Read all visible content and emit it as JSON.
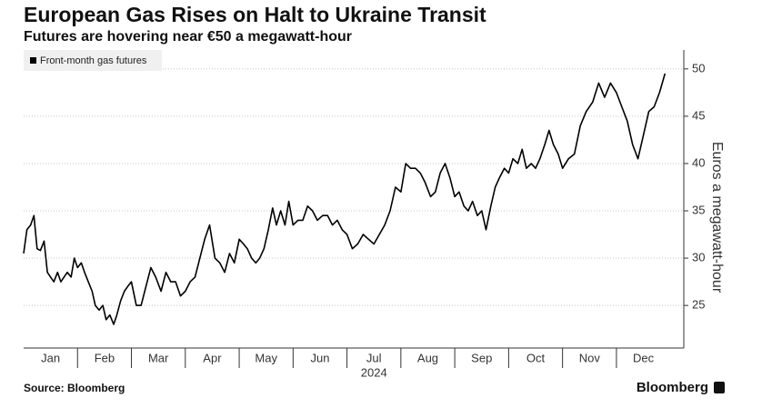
{
  "chart_data": {
    "type": "line",
    "title": "European Gas Rises on Halt to Ukraine Transit",
    "subtitle": "Futures are hovering near €50 a megawatt-hour",
    "ylabel": "Euros a megawatt-hour",
    "xlabel": "2024",
    "source": "Source: Bloomberg",
    "brand": "Bloomberg",
    "grid": true,
    "legend": "top-left",
    "y_axis_side": "right",
    "xlim": [
      0,
      12.25
    ],
    "ylim": [
      20.5,
      52
    ],
    "yticks": [
      25,
      30,
      35,
      40,
      45,
      50
    ],
    "xticks": [
      {
        "value": 0.5,
        "label": "Jan"
      },
      {
        "value": 1.5,
        "label": "Feb"
      },
      {
        "value": 2.5,
        "label": "Mar"
      },
      {
        "value": 3.5,
        "label": "Apr"
      },
      {
        "value": 4.5,
        "label": "May"
      },
      {
        "value": 5.5,
        "label": "Jun"
      },
      {
        "value": 6.5,
        "label": "Jul"
      },
      {
        "value": 7.5,
        "label": "Aug"
      },
      {
        "value": 8.5,
        "label": "Sep"
      },
      {
        "value": 9.5,
        "label": "Oct"
      },
      {
        "value": 10.5,
        "label": "Nov"
      },
      {
        "value": 11.5,
        "label": "Dec"
      }
    ],
    "x": [
      0,
      0.06,
      0.13,
      0.19,
      0.25,
      0.31,
      0.38,
      0.44,
      0.5,
      0.56,
      0.63,
      0.69,
      0.75,
      0.81,
      0.88,
      0.94,
      1,
      1.07,
      1.13,
      1.2,
      1.27,
      1.33,
      1.4,
      1.47,
      1.53,
      1.6,
      1.67,
      1.73,
      1.8,
      1.87,
      1.93,
      2,
      2.09,
      2.18,
      2.27,
      2.36,
      2.45,
      2.55,
      2.64,
      2.73,
      2.82,
      2.91,
      3,
      3.09,
      3.18,
      3.27,
      3.36,
      3.45,
      3.55,
      3.64,
      3.73,
      3.82,
      3.91,
      4,
      4.08,
      4.15,
      4.23,
      4.31,
      4.38,
      4.46,
      4.54,
      4.62,
      4.69,
      4.77,
      4.85,
      4.92,
      5,
      5.09,
      5.18,
      5.27,
      5.36,
      5.45,
      5.55,
      5.64,
      5.73,
      5.82,
      5.91,
      6,
      6.1,
      6.2,
      6.3,
      6.4,
      6.5,
      6.6,
      6.7,
      6.8,
      6.9,
      7,
      7.09,
      7.18,
      7.27,
      7.36,
      7.45,
      7.55,
      7.64,
      7.73,
      7.82,
      7.91,
      8,
      8.08,
      8.17,
      8.25,
      8.33,
      8.42,
      8.5,
      8.58,
      8.67,
      8.75,
      8.83,
      8.92,
      9,
      9.08,
      9.17,
      9.25,
      9.33,
      9.42,
      9.5,
      9.58,
      9.67,
      9.75,
      9.83,
      9.92,
      10,
      10.11,
      10.22,
      10.33,
      10.44,
      10.56,
      10.67,
      10.78,
      10.89,
      11,
      11.1,
      11.2,
      11.3,
      11.4,
      11.5,
      11.6,
      11.7,
      11.8,
      11.9
    ],
    "series": [
      {
        "name": "Front-month gas futures",
        "color": "#000000",
        "values": [
          30.5,
          33,
          33.5,
          34.5,
          31,
          30.8,
          31.8,
          28.5,
          28,
          27.5,
          28.5,
          27.5,
          28,
          28.5,
          28,
          30,
          29,
          29.5,
          28.5,
          27.5,
          26.5,
          25,
          24.5,
          25,
          23.5,
          24,
          23,
          24,
          25.5,
          26.5,
          27,
          27.5,
          25,
          25,
          27,
          29,
          28,
          26.5,
          28.5,
          27.5,
          27.5,
          26,
          26.5,
          27.5,
          28,
          30,
          32,
          33.5,
          30,
          29.5,
          28.5,
          30.5,
          29.5,
          32,
          31.5,
          31,
          30,
          29.5,
          30,
          31,
          33,
          35.3,
          33.5,
          35,
          33.5,
          36,
          33.5,
          34,
          34,
          35.5,
          35,
          34,
          34.5,
          34.5,
          33.5,
          34,
          33,
          32.5,
          31,
          31.5,
          32.5,
          32,
          31.5,
          32.5,
          33.5,
          35,
          37.5,
          37,
          40,
          39.5,
          39.5,
          39,
          38,
          36.5,
          37,
          39,
          40,
          38.5,
          36.5,
          37,
          35.5,
          35,
          36,
          34.5,
          35,
          33,
          35.5,
          37.5,
          38.5,
          39.5,
          39,
          40.5,
          40,
          41.5,
          39.5,
          40,
          39.5,
          40.5,
          42,
          43.5,
          42,
          41,
          39.5,
          40.5,
          41,
          44,
          45.5,
          46.5,
          48.5,
          47,
          48.5,
          47.5,
          46,
          44.5,
          42,
          40.5,
          43,
          45.5,
          46,
          47.5,
          49.5
        ]
      }
    ]
  }
}
